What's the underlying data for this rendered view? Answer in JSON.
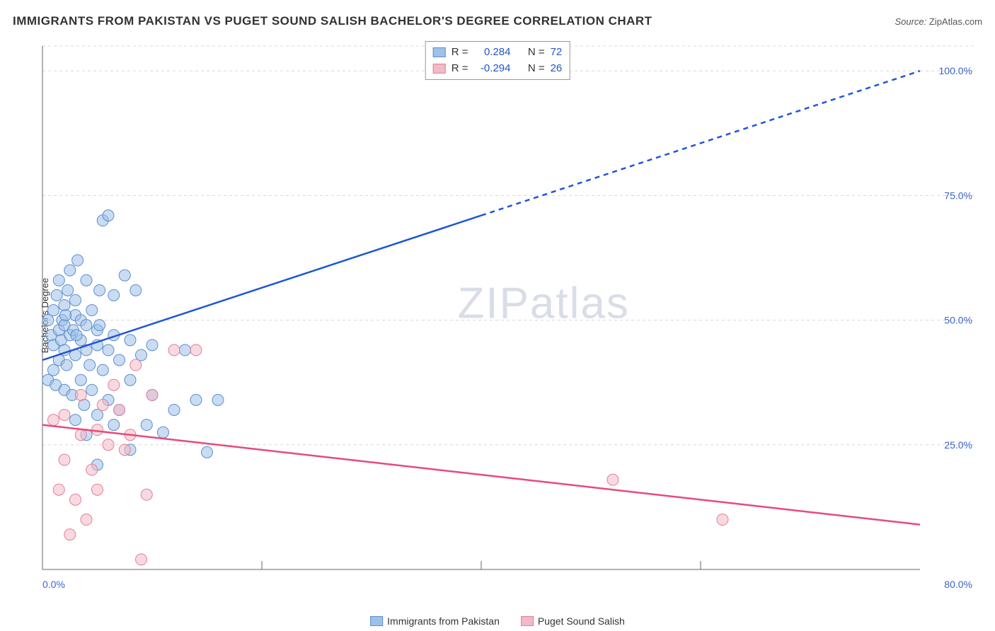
{
  "header": {
    "title": "IMMIGRANTS FROM PAKISTAN VS PUGET SOUND SALISH BACHELOR'S DEGREE CORRELATION CHART",
    "source_label": "Source: ",
    "source_name": "ZipAtlas.com"
  },
  "chart": {
    "type": "scatter",
    "ylabel": "Bachelor's Degree",
    "xlim": [
      0,
      80
    ],
    "ylim": [
      0,
      105
    ],
    "x_tick_start": "0.0%",
    "x_tick_end": "80.0%",
    "y_ticks": [
      25.0,
      50.0,
      75.0,
      100.0
    ],
    "y_tick_labels": [
      "25.0%",
      "50.0%",
      "75.0%",
      "100.0%"
    ],
    "grid_color": "#d8d8d8",
    "axis_color": "#666666",
    "tick_label_color": "#3a62c8",
    "tick_label_fontsize": 14,
    "background_color": "#ffffff",
    "watermark": "ZIPatlas",
    "marker_radius": 8,
    "marker_opacity": 0.55,
    "series": [
      {
        "name": "Immigrants from Pakistan",
        "color_fill": "#9fc0e8",
        "color_stroke": "#5a8ed0",
        "trend": {
          "x1": 0,
          "y1": 42,
          "x2": 80,
          "y2": 100,
          "solid_until_x": 40,
          "color": "#1f56d6",
          "width": 2.5
        },
        "points": [
          [
            0.5,
            38
          ],
          [
            0.5,
            50
          ],
          [
            0.8,
            47
          ],
          [
            1,
            40
          ],
          [
            1,
            45
          ],
          [
            1,
            52
          ],
          [
            1.2,
            37
          ],
          [
            1.3,
            55
          ],
          [
            1.5,
            42
          ],
          [
            1.5,
            48
          ],
          [
            1.5,
            58
          ],
          [
            1.7,
            46
          ],
          [
            1.8,
            50
          ],
          [
            2,
            36
          ],
          [
            2,
            44
          ],
          [
            2,
            49
          ],
          [
            2,
            53
          ],
          [
            2.2,
            41
          ],
          [
            2.3,
            56
          ],
          [
            2.5,
            47
          ],
          [
            2.5,
            60
          ],
          [
            2.7,
            35
          ],
          [
            2.8,
            48
          ],
          [
            3,
            30
          ],
          [
            3,
            43
          ],
          [
            3,
            51
          ],
          [
            3,
            54
          ],
          [
            3.2,
            62
          ],
          [
            3.5,
            38
          ],
          [
            3.5,
            46
          ],
          [
            3.5,
            50
          ],
          [
            3.8,
            33
          ],
          [
            4,
            27
          ],
          [
            4,
            44
          ],
          [
            4,
            49
          ],
          [
            4,
            58
          ],
          [
            4.3,
            41
          ],
          [
            4.5,
            36
          ],
          [
            4.5,
            52
          ],
          [
            5,
            21
          ],
          [
            5,
            31
          ],
          [
            5,
            45
          ],
          [
            5,
            48
          ],
          [
            5.2,
            56
          ],
          [
            5.5,
            40
          ],
          [
            5.5,
            70
          ],
          [
            6,
            34
          ],
          [
            6,
            44
          ],
          [
            6,
            71
          ],
          [
            6.5,
            29
          ],
          [
            6.5,
            47
          ],
          [
            6.5,
            55
          ],
          [
            7,
            32
          ],
          [
            7,
            42
          ],
          [
            7.5,
            59
          ],
          [
            8,
            24
          ],
          [
            8,
            38
          ],
          [
            8,
            46
          ],
          [
            8.5,
            56
          ],
          [
            9,
            43
          ],
          [
            9.5,
            29
          ],
          [
            10,
            35
          ],
          [
            10,
            45
          ],
          [
            11,
            27.5
          ],
          [
            12,
            32
          ],
          [
            13,
            44
          ],
          [
            14,
            34
          ],
          [
            15,
            23.5
          ],
          [
            16,
            34
          ],
          [
            5.2,
            49
          ],
          [
            3.1,
            47
          ],
          [
            2.1,
            51
          ]
        ]
      },
      {
        "name": "Puget Sound Salish",
        "color_fill": "#f2b9c6",
        "color_stroke": "#e07f9a",
        "trend": {
          "x1": 0,
          "y1": 29,
          "x2": 80,
          "y2": 9,
          "color": "#e84a7a",
          "width": 2.5
        },
        "points": [
          [
            1,
            30
          ],
          [
            1.5,
            16
          ],
          [
            2,
            22
          ],
          [
            2,
            31
          ],
          [
            2.5,
            7
          ],
          [
            3,
            14
          ],
          [
            3.5,
            27
          ],
          [
            3.5,
            35
          ],
          [
            4,
            10
          ],
          [
            4.5,
            20
          ],
          [
            5,
            16
          ],
          [
            5,
            28
          ],
          [
            5.5,
            33
          ],
          [
            6,
            25
          ],
          [
            6.5,
            37
          ],
          [
            7,
            32
          ],
          [
            7.5,
            24
          ],
          [
            8,
            27
          ],
          [
            8.5,
            41
          ],
          [
            9,
            2
          ],
          [
            9.5,
            15
          ],
          [
            10,
            35
          ],
          [
            12,
            44
          ],
          [
            14,
            44
          ],
          [
            52,
            18
          ],
          [
            62,
            10
          ]
        ]
      }
    ]
  },
  "stats": {
    "rows": [
      {
        "swatch_fill": "#9fc0e8",
        "swatch_stroke": "#5a8ed0",
        "r_label": "R =",
        "r": "0.284",
        "n_label": "N =",
        "n": "72"
      },
      {
        "swatch_fill": "#f2b9c6",
        "swatch_stroke": "#e07f9a",
        "r_label": "R =",
        "r": "-0.294",
        "n_label": "N =",
        "n": "26"
      }
    ]
  },
  "legend": {
    "items": [
      {
        "label": "Immigrants from Pakistan",
        "fill": "#9fc0e8",
        "stroke": "#5a8ed0"
      },
      {
        "label": "Puget Sound Salish",
        "fill": "#f2b9c6",
        "stroke": "#e07f9a"
      }
    ]
  }
}
